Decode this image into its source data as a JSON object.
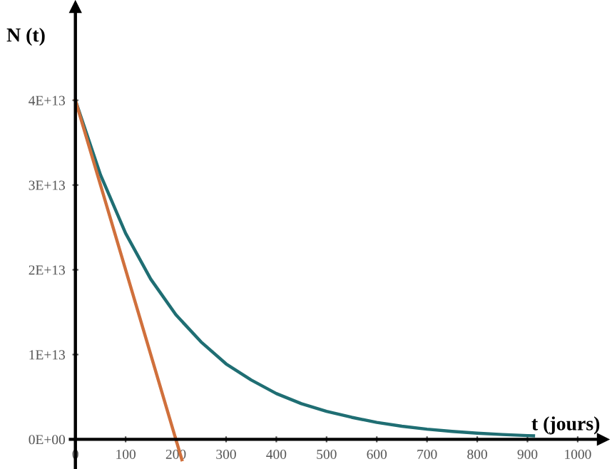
{
  "chart_data": {
    "type": "line",
    "xlabel": "t (jours)",
    "ylabel": "N (t)",
    "xlim": [
      -10,
      1050
    ],
    "ylim": [
      -3500000000000.0,
      51000000000000.0
    ],
    "xticks": [
      0,
      100,
      200,
      300,
      400,
      500,
      600,
      700,
      800,
      900,
      1000
    ],
    "yticks": [
      {
        "value": 0,
        "label": "0E+00"
      },
      {
        "value": 10000000000000.0,
        "label": "1E+13"
      },
      {
        "value": 20000000000000.0,
        "label": "2E+13"
      },
      {
        "value": 30000000000000.0,
        "label": "3E+13"
      },
      {
        "value": 40000000000000.0,
        "label": "4E+13"
      }
    ],
    "grid": false,
    "legend": false,
    "marker": "none",
    "line_style": "solid",
    "series": [
      {
        "color": "#1f6e73",
        "x": [
          0,
          50,
          100,
          150,
          200,
          250,
          300,
          350,
          400,
          450,
          500,
          550,
          600,
          650,
          700,
          750,
          800,
          850,
          900,
          912
        ],
        "values": [
          40000000000000.0,
          31200000000000.0,
          24300000000000.0,
          18900000000000.0,
          14700000000000.0,
          11500000000000.0,
          8900000000000.0,
          7000000000000.0,
          5400000000000.0,
          4200000000000.0,
          3300000000000.0,
          2600000000000.0,
          2000000000000.0,
          1550000000000.0,
          1200000000000.0,
          940000000000.0,
          730000000000.0,
          570000000000.0,
          440000000000.0,
          420000000000.0
        ]
      },
      {
        "color": "#d0703c",
        "x": [
          0,
          212
        ],
        "values": [
          40000000000000.0,
          -2400000000000.0
        ]
      }
    ]
  }
}
